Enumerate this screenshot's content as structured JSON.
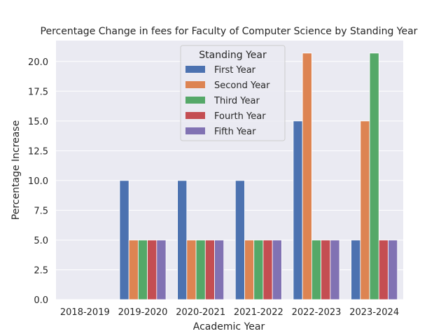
{
  "chart_data": {
    "type": "bar",
    "title": "Percentage Change in fees for Faculty of Computer Science by Standing Year",
    "xlabel": "Academic Year",
    "ylabel": "Percentage Increase",
    "categories": [
      "2018-2019",
      "2019-2020",
      "2020-2021",
      "2021-2022",
      "2022-2023",
      "2023-2024"
    ],
    "ylim": [
      0,
      21.75
    ],
    "yticks": [
      "0.0",
      "2.5",
      "5.0",
      "7.5",
      "10.0",
      "12.5",
      "15.0",
      "17.5",
      "20.0"
    ],
    "grid": true,
    "legend": {
      "title": "Standing Year",
      "placement": "top-center"
    },
    "series": [
      {
        "name": "First Year",
        "color": "#4c72b0",
        "values": [
          0,
          10.0,
          10.0,
          10.0,
          15.0,
          5.0
        ]
      },
      {
        "name": "Second Year",
        "color": "#dd8452",
        "values": [
          0,
          5.0,
          5.0,
          5.0,
          20.7,
          15.0
        ]
      },
      {
        "name": "Third Year",
        "color": "#55a868",
        "values": [
          0,
          5.0,
          5.0,
          5.0,
          5.0,
          20.7
        ]
      },
      {
        "name": "Fourth Year",
        "color": "#c44e52",
        "values": [
          0,
          5.0,
          5.0,
          5.0,
          5.0,
          5.0
        ]
      },
      {
        "name": "Fifth Year",
        "color": "#8172b3",
        "values": [
          0,
          5.0,
          5.0,
          5.0,
          5.0,
          5.0
        ]
      }
    ]
  },
  "style": {
    "plot_background": "#eaeaf2",
    "grid_color": "#ffffff"
  }
}
